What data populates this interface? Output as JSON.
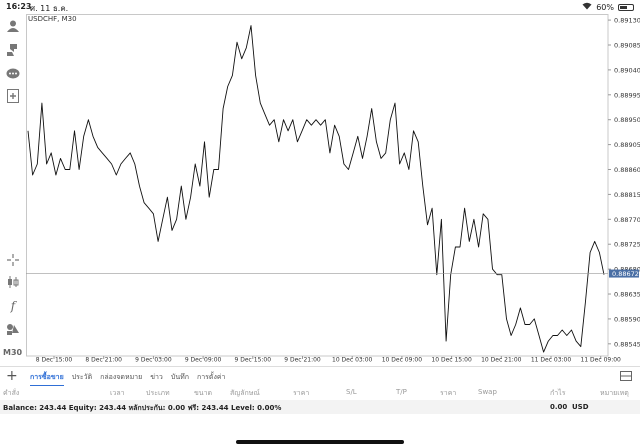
{
  "status_bar": {
    "time": "16:23",
    "date": "ศ. 11 ธ.ค.",
    "battery": "60%",
    "battery_level": 0.6
  },
  "chart": {
    "symbol": "USDCHF, M30",
    "current_price": "0.88672",
    "timeframe_label": "M30"
  },
  "chart_data": {
    "type": "line",
    "x_tick_labels": [
      "8 Dec 15:00",
      "8 Dec 21:00",
      "9 Dec 03:00",
      "9 Dec 09:00",
      "9 Dec 15:00",
      "9 Dec 21:00",
      "10 Dec 03:00",
      "10 Dec 09:00",
      "10 Dec 15:00",
      "10 Dec 21:00",
      "11 Dec 03:00",
      "11 Dec 09:00"
    ],
    "y_tick_labels": [
      "0.89130",
      "0.89085",
      "0.89040",
      "0.88995",
      "0.88950",
      "0.88905",
      "0.88860",
      "0.88815",
      "0.88770",
      "0.88725",
      "0.88680",
      "0.88635",
      "0.88590",
      "0.88545"
    ],
    "ylim": [
      0.88523,
      0.89141
    ],
    "series": [
      {
        "color": "#111111",
        "values": [
          0.8893,
          0.8885,
          0.8887,
          0.8898,
          0.8887,
          0.8889,
          0.8885,
          0.8888,
          0.8886,
          0.8886,
          0.8893,
          0.8886,
          0.8892,
          0.8895,
          0.8892,
          0.889,
          0.8889,
          0.8888,
          0.8887,
          0.8885,
          0.8887,
          0.8888,
          0.8889,
          0.8887,
          0.8883,
          0.888,
          0.8879,
          0.8878,
          0.8873,
          0.8877,
          0.8881,
          0.8875,
          0.8877,
          0.8883,
          0.8877,
          0.8881,
          0.8887,
          0.8883,
          0.8891,
          0.8881,
          0.8886,
          0.8886,
          0.8897,
          0.8901,
          0.8903,
          0.8909,
          0.8906,
          0.8908,
          0.8912,
          0.8903,
          0.8898,
          0.8896,
          0.8894,
          0.8895,
          0.8891,
          0.8895,
          0.8893,
          0.8895,
          0.8891,
          0.8893,
          0.8895,
          0.8894,
          0.8895,
          0.8894,
          0.8895,
          0.8889,
          0.8894,
          0.8892,
          0.8887,
          0.8886,
          0.8889,
          0.8892,
          0.8888,
          0.8892,
          0.8897,
          0.8891,
          0.8888,
          0.8889,
          0.8895,
          0.8898,
          0.8887,
          0.8889,
          0.8886,
          0.8893,
          0.8891,
          0.8883,
          0.8876,
          0.8879,
          0.8867,
          0.8877,
          0.8855,
          0.8867,
          0.8872,
          0.8872,
          0.8879,
          0.8873,
          0.8877,
          0.8872,
          0.8878,
          0.8877,
          0.8868,
          0.8867,
          0.8867,
          0.8859,
          0.8856,
          0.8858,
          0.8861,
          0.8858,
          0.8858,
          0.8859,
          0.8856,
          0.8853,
          0.8855,
          0.8856,
          0.8856,
          0.8857,
          0.8856,
          0.8857,
          0.8855,
          0.8854,
          0.8862,
          0.8871,
          0.8873,
          0.8871,
          0.8867
        ]
      }
    ],
    "current_price": 0.88672,
    "grid": false
  },
  "toolbar_left": {
    "icons": [
      "person-icon",
      "hand-share-icon",
      "chat-icon",
      "add-document-icon",
      "crosshair-icon",
      "candlestick-icon",
      "function-icon",
      "objects-icon"
    ],
    "timeframe": "M30"
  },
  "tabs": {
    "items": [
      "การซื้อขาย",
      "ประวัติ",
      "กล่องจดหมาย",
      "ข่าว",
      "บันทึก",
      "การตั้งค่า"
    ]
  },
  "columns": [
    "คำสั่ง",
    "เวลา",
    "ประเภท",
    "ขนาด",
    "สัญลักษณ์",
    "ราคา",
    "S/L",
    "T/P",
    "ราคา",
    "Swap",
    "กำไร",
    "หมายเหตุ"
  ],
  "balance": {
    "text": "Balance: 243.44 Equity: 243.44 หลักประกัน: 0.00 ฟรี: 243.44 Level: 0.00%",
    "amount": "0.00",
    "currency": "USD"
  }
}
